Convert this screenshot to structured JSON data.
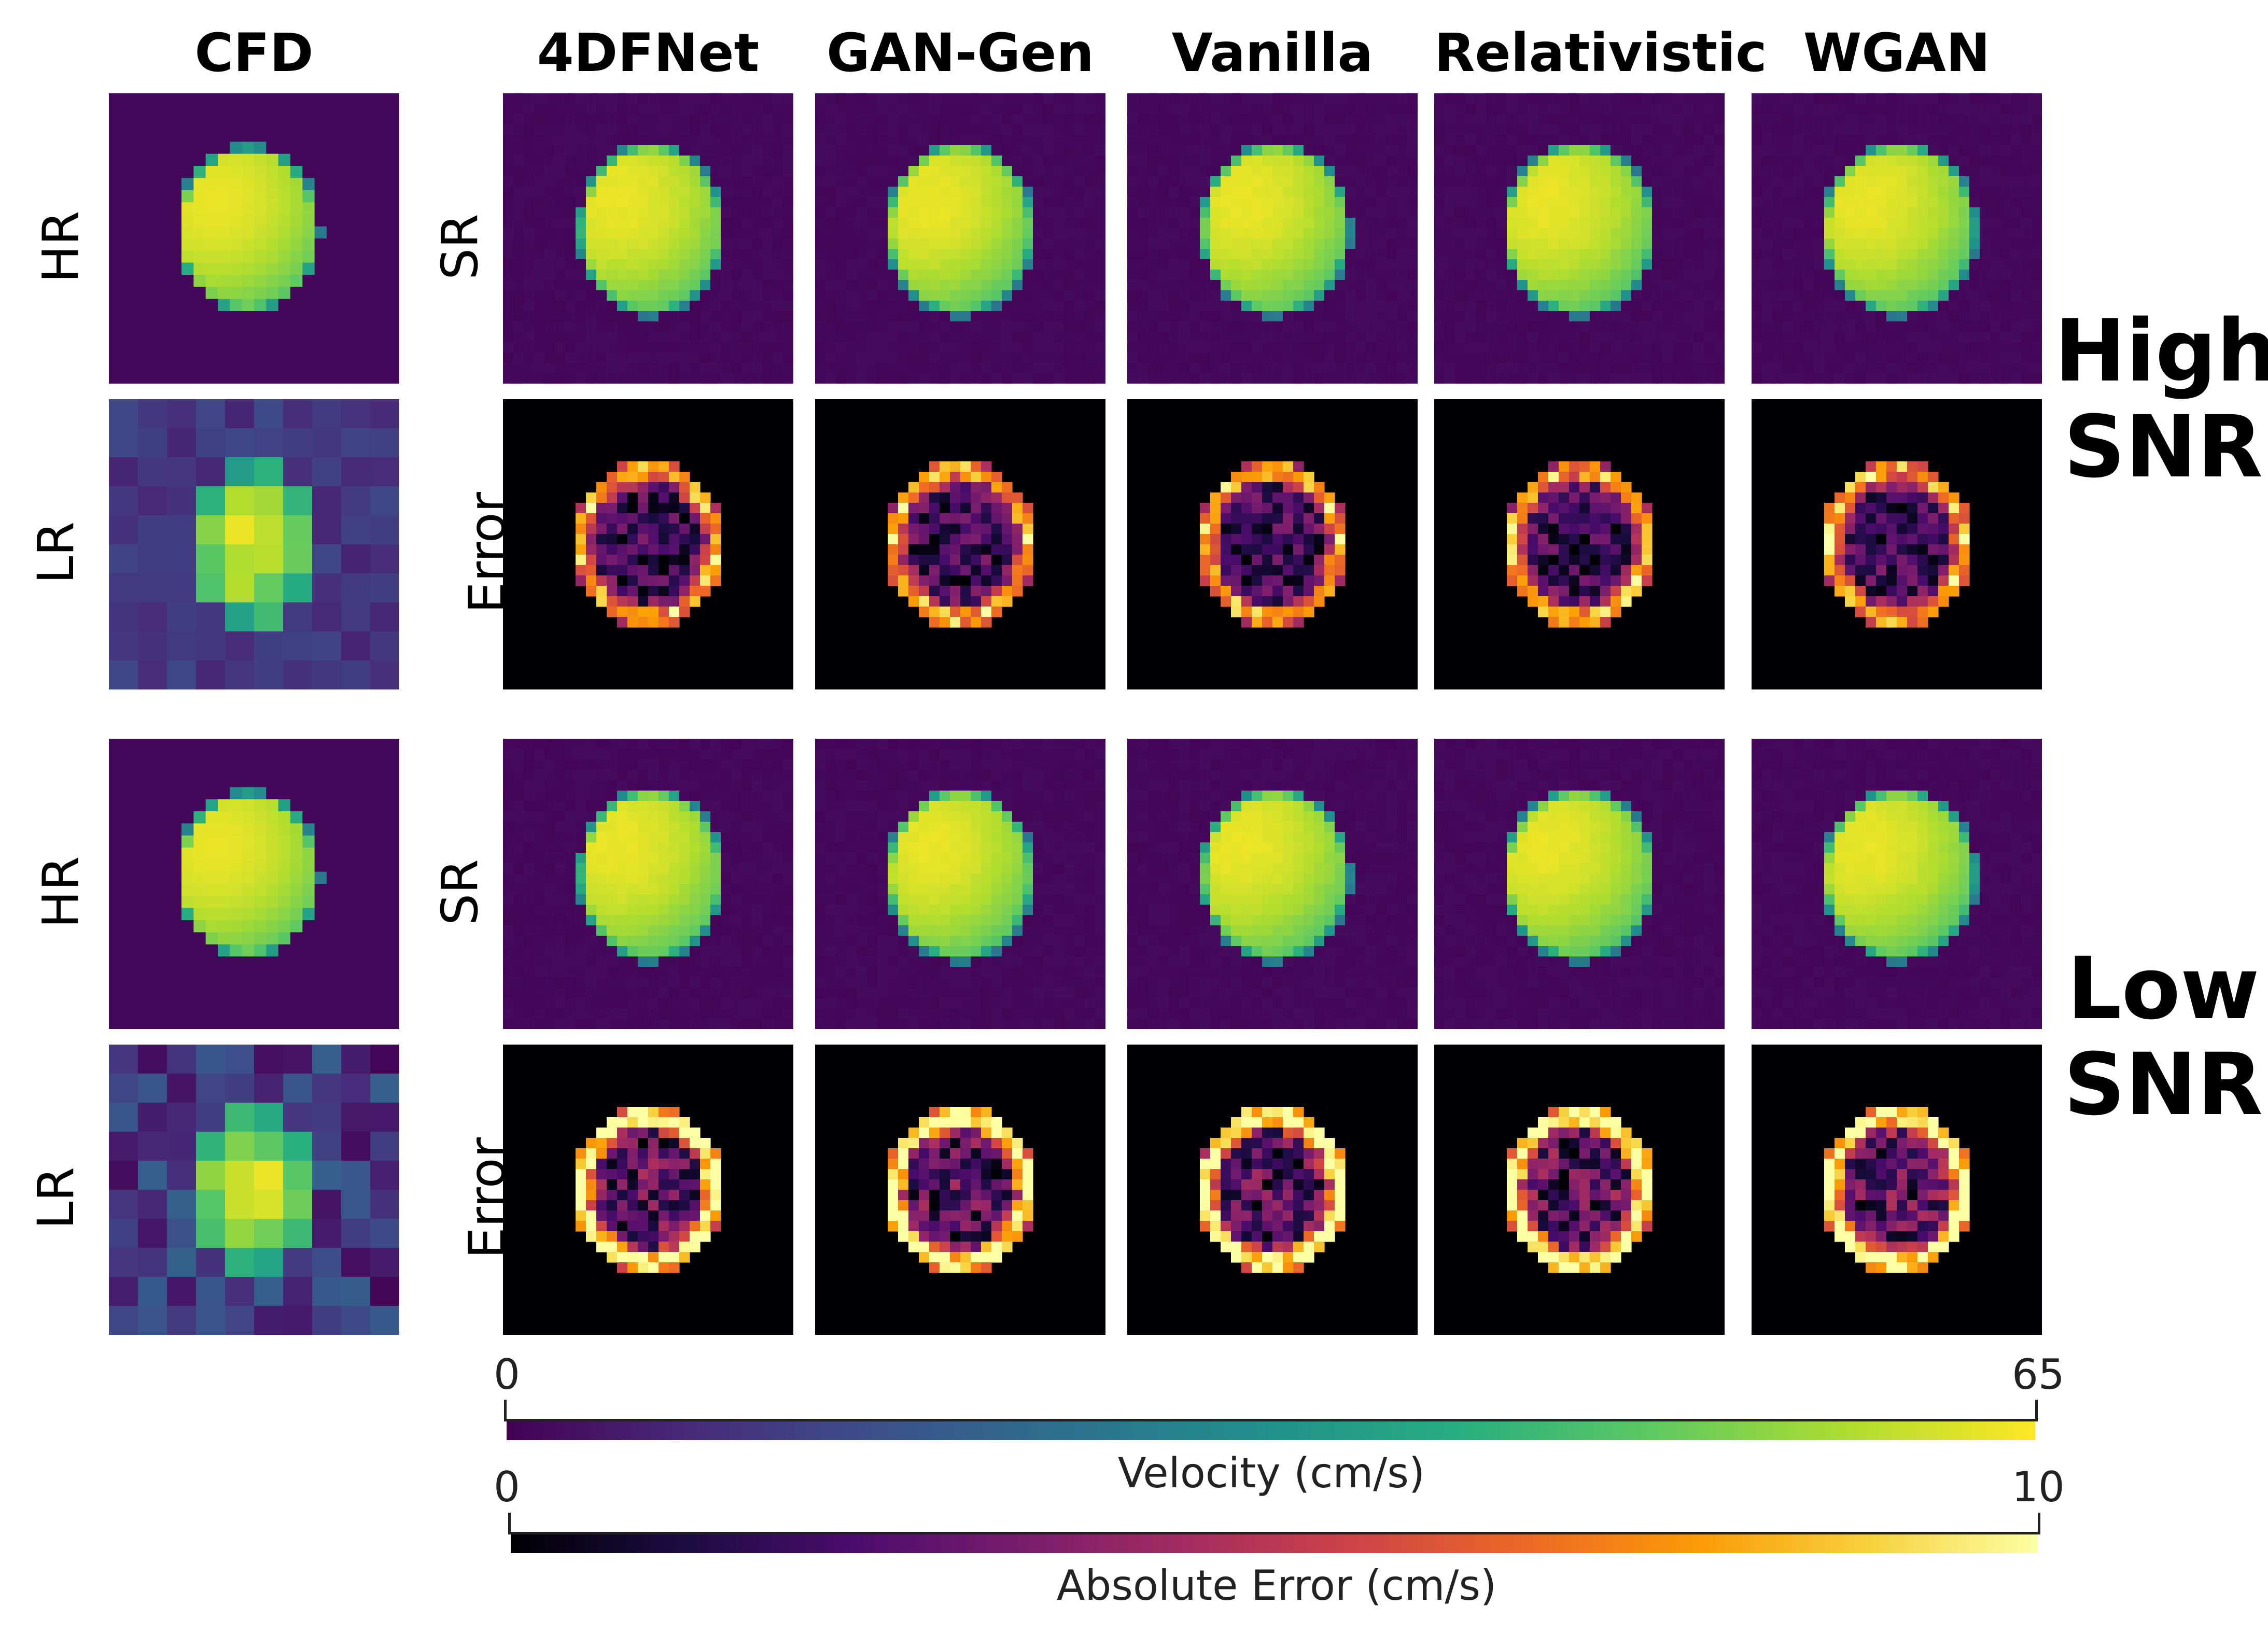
{
  "columns": [
    "CFD",
    "4DFNet",
    "GAN-Gen",
    "Vanilla",
    "Relativistic",
    "WGAN"
  ],
  "row_labels": {
    "hr": "HR",
    "lr": "LR",
    "sr": "SR",
    "error": "Error"
  },
  "groups": [
    {
      "label_line1": "High",
      "label_line2": "SNR"
    },
    {
      "label_line1": "Low",
      "label_line2": "SNR"
    }
  ],
  "colorbars": {
    "velocity": {
      "title": "Velocity (cm/s)",
      "min": "0",
      "max": "65",
      "colormap": "viridis"
    },
    "error": {
      "title": "Absolute Error (cm/s)",
      "min": "0",
      "max": "10",
      "colormap": "inferno"
    }
  },
  "colors": {
    "velocity_background": "#440154",
    "error_background": "#000004"
  }
}
